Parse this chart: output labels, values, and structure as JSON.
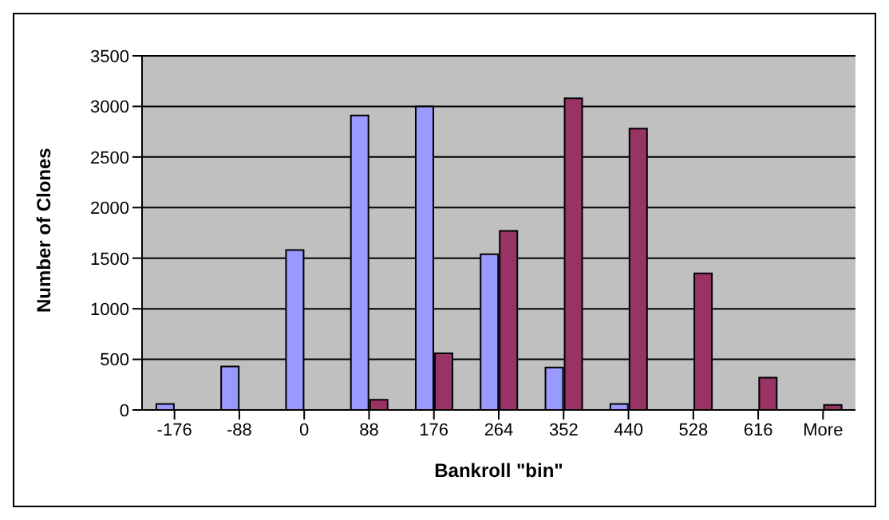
{
  "chart_data": {
    "type": "bar",
    "xlabel": "Bankroll \"bin\"",
    "ylabel": "Number of Clones",
    "categories": [
      "-176",
      "-88",
      "0",
      "88",
      "176",
      "264",
      "352",
      "440",
      "528",
      "616",
      "More"
    ],
    "series": [
      {
        "color": "#9999ff",
        "values": [
          60,
          430,
          1580,
          2910,
          3000,
          1540,
          420,
          60,
          0,
          0,
          0
        ]
      },
      {
        "color": "#993366",
        "values": [
          0,
          0,
          0,
          100,
          560,
          1770,
          3080,
          2780,
          1350,
          320,
          50
        ]
      }
    ],
    "ylim": [
      0,
      3500
    ],
    "yticks": [
      0,
      500,
      1000,
      1500,
      2000,
      2500,
      3000,
      3500
    ],
    "grid": "y",
    "legend": false
  }
}
